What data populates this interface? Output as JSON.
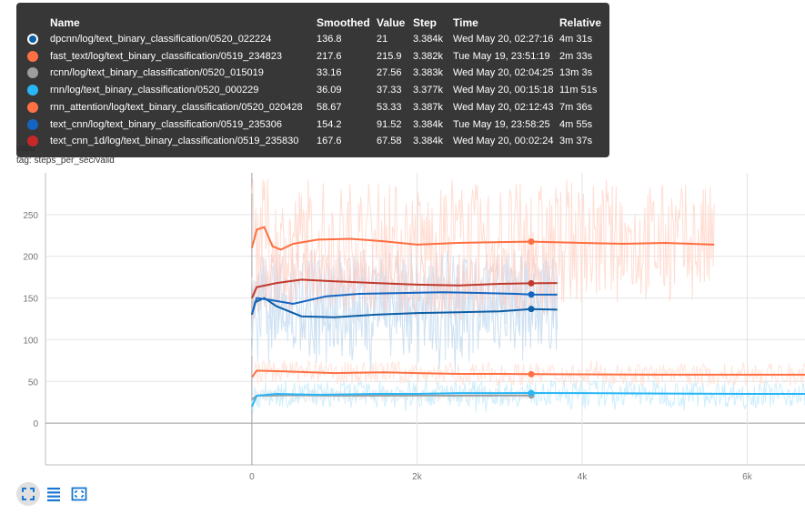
{
  "run_tag": "tag: steps_per_sec/valid",
  "run_title_fragment": "valid",
  "tooltip": {
    "headers": {
      "name": "Name",
      "smoothed": "Smoothed",
      "value": "Value",
      "step": "Step",
      "time": "Time",
      "relative": "Relative"
    },
    "rows": [
      {
        "name": "dpcnn/log/text_binary_classification/0520_022224",
        "smoothed": "136.8",
        "value": "21",
        "step": "3.384k",
        "time": "Wed May 20, 02:27:16",
        "relative": "4m 31s",
        "color": "#0d5fa6",
        "ring": true
      },
      {
        "name": "fast_text/log/text_binary_classification/0519_234823",
        "smoothed": "217.6",
        "value": "215.9",
        "step": "3.382k",
        "time": "Tue May 19, 23:51:19",
        "relative": "2m 33s",
        "color": "#ff7043",
        "ring": false
      },
      {
        "name": "rcnn/log/text_binary_classification/0520_015019",
        "smoothed": "33.16",
        "value": "27.56",
        "step": "3.383k",
        "time": "Wed May 20, 02:04:25",
        "relative": "13m 3s",
        "color": "#9e9e9e",
        "ring": false
      },
      {
        "name": "rnn/log/text_binary_classification/0520_000229",
        "smoothed": "36.09",
        "value": "37.33",
        "step": "3.377k",
        "time": "Wed May 20, 00:15:18",
        "relative": "11m 51s",
        "color": "#29b6f6",
        "ring": false
      },
      {
        "name": "rnn_attention/log/text_binary_classification/0520_020428",
        "smoothed": "58.67",
        "value": "53.33",
        "step": "3.387k",
        "time": "Wed May 20, 02:12:43",
        "relative": "7m 36s",
        "color": "#ff7043",
        "ring": false
      },
      {
        "name": "text_cnn/log/text_binary_classification/0519_235306",
        "smoothed": "154.2",
        "value": "91.52",
        "step": "3.384k",
        "time": "Tue May 19, 23:58:25",
        "relative": "4m 55s",
        "color": "#1565c0",
        "ring": false
      },
      {
        "name": "text_cnn_1d/log/text_binary_classification/0519_235830",
        "smoothed": "167.6",
        "value": "67.58",
        "step": "3.384k",
        "time": "Wed May 20, 00:02:24",
        "relative": "3m 37s",
        "color": "#c62828",
        "ring": false
      }
    ]
  },
  "chart_data": {
    "type": "line",
    "xlim": [
      -2500,
      6700
    ],
    "ylim": [
      -50,
      300
    ],
    "xticks": [
      0,
      2000,
      4000,
      6000
    ],
    "xtick_labels": [
      "0",
      "2k",
      "4k",
      "6k"
    ],
    "yticks": [
      0,
      50,
      100,
      150,
      200,
      250
    ],
    "ytick_labels": [
      "0",
      "50",
      "100",
      "150",
      "200",
      "250"
    ],
    "cursor_step": 3384,
    "series": [
      {
        "name": "dpcnn/log/text_binary_classification/0520_022224",
        "color": "#0d5fa6",
        "raw_color": "#c6dcef",
        "x": [
          0,
          40,
          150,
          300,
          600,
          1000,
          1500,
          2000,
          2500,
          3000,
          3384,
          3700
        ],
        "y": [
          130,
          145,
          150,
          140,
          128,
          127,
          130,
          132,
          133,
          134,
          136.8,
          136
        ],
        "raw_lo": 60,
        "raw_hi": 170
      },
      {
        "name": "fast_text/log/text_binary_classification/0519_234823",
        "color": "#ff6e40",
        "raw_color": "#ffd8cc",
        "x": [
          0,
          60,
          150,
          250,
          350,
          500,
          800,
          1200,
          1600,
          2000,
          2500,
          3000,
          3382,
          4000,
          4500,
          5000,
          5600
        ],
        "y": [
          210,
          232,
          235,
          212,
          208,
          215,
          220,
          221,
          218,
          214,
          216,
          217,
          217.6,
          216,
          215,
          216,
          214
        ],
        "raw_lo": 140,
        "raw_hi": 300
      },
      {
        "name": "rcnn/log/text_binary_classification/0520_015019",
        "color": "#9e9e9e",
        "raw_color": "#e6e6e6",
        "x": [
          0,
          60,
          200,
          500,
          1000,
          1500,
          2000,
          2500,
          3000,
          3383
        ],
        "y": [
          28,
          33,
          33,
          33.5,
          33,
          33,
          33.2,
          33,
          33.1,
          33.16
        ],
        "raw_lo": 24,
        "raw_hi": 42
      },
      {
        "name": "rnn/log/text_binary_classification/0520_000229",
        "color": "#29b6f6",
        "raw_color": "#c6ecfb",
        "x": [
          0,
          60,
          300,
          800,
          1500,
          2000,
          2500,
          3000,
          3377,
          4000,
          5000,
          6000,
          6700
        ],
        "y": [
          20,
          33,
          35,
          34,
          35,
          35,
          36,
          36,
          36.09,
          36,
          35.5,
          35,
          35
        ],
        "raw_lo": 12,
        "raw_hi": 48
      },
      {
        "name": "rnn_attention/log/text_binary_classification/0520_020428",
        "color": "#ff7043",
        "raw_color": "#ffe0d6",
        "x": [
          0,
          60,
          400,
          1000,
          1600,
          2000,
          2500,
          3000,
          3387,
          4000,
          5000,
          6000,
          6700
        ],
        "y": [
          55,
          63,
          62,
          60,
          61,
          60,
          59,
          59,
          58.67,
          58.5,
          58,
          58,
          58
        ],
        "raw_lo": 45,
        "raw_hi": 75
      },
      {
        "name": "text_cnn/log/text_binary_classification/0519_235306",
        "color": "#1565c0",
        "raw_color": "#cde0f4",
        "x": [
          0,
          60,
          200,
          500,
          900,
          1300,
          1800,
          2300,
          2800,
          3200,
          3384,
          3700
        ],
        "y": [
          130,
          150,
          148,
          143,
          152,
          155,
          156,
          157,
          156,
          155,
          154.2,
          154
        ],
        "raw_lo": 70,
        "raw_hi": 180
      },
      {
        "name": "text_cnn_1d/log/text_binary_classification/0519_235830",
        "color": "#c0392b",
        "raw_color": "#f5d0cc",
        "x": [
          0,
          60,
          300,
          600,
          1000,
          1500,
          2000,
          2500,
          3000,
          3384,
          3700
        ],
        "y": [
          150,
          163,
          168,
          172,
          170,
          168,
          166,
          165,
          167,
          167.6,
          168
        ],
        "raw_lo": 110,
        "raw_hi": 200
      }
    ]
  }
}
